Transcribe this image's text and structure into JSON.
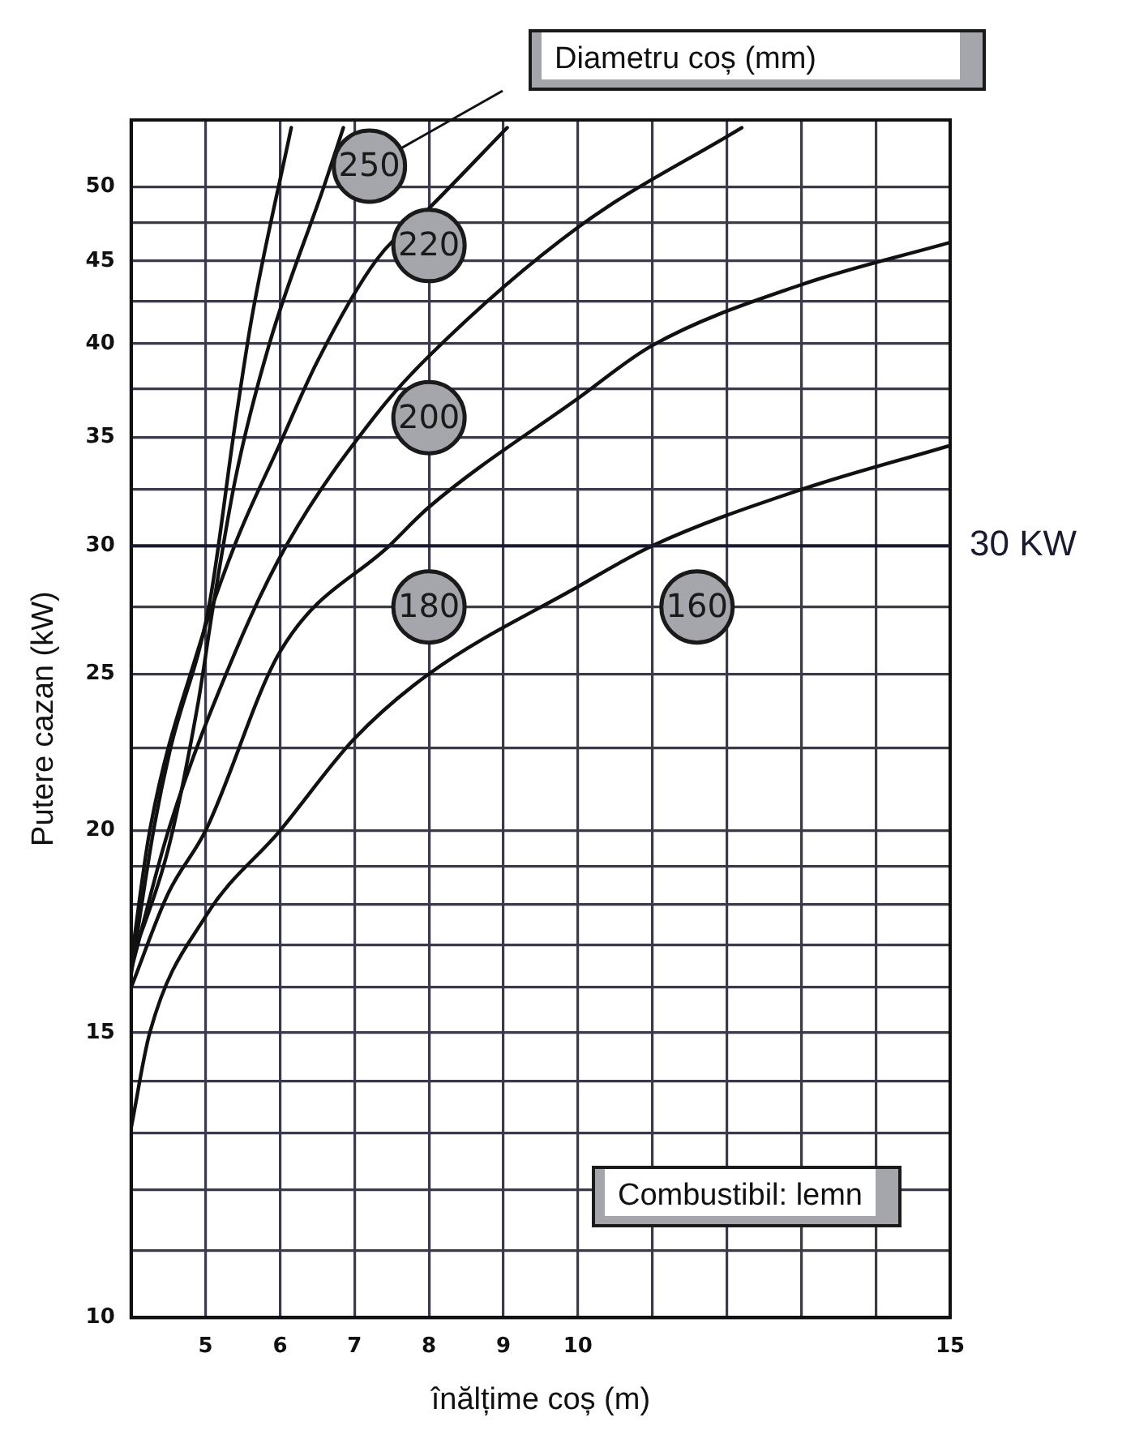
{
  "chart_data": {
    "type": "line",
    "legend_title": "Diametru coș (mm)",
    "xlabel": "înălțime coș (m)",
    "ylabel": "Putere cazan (kW)",
    "annotations": [
      "Combustibil: lemn"
    ],
    "xlim": [
      4,
      15
    ],
    "xticks": [
      {
        "value": 4,
        "label": null
      },
      5,
      6,
      7,
      8,
      9,
      10,
      {
        "value": 11,
        "label": null
      },
      {
        "value": 12,
        "label": null
      },
      {
        "value": 13,
        "label": null
      },
      {
        "value": 14,
        "label": null
      },
      15
    ],
    "ylim": [
      10,
      55
    ],
    "yticks": [
      10,
      {
        "value": 11,
        "label": null
      },
      {
        "value": 12,
        "label": null
      },
      {
        "value": 13,
        "label": null
      },
      {
        "value": 14,
        "label": null
      },
      15,
      {
        "value": 16,
        "label": null
      },
      {
        "value": 17,
        "label": null
      },
      {
        "value": 18,
        "label": null
      },
      {
        "value": 19,
        "label": null
      },
      20,
      {
        "value": 22.5,
        "label": null
      },
      25,
      {
        "value": 27.5,
        "label": null
      },
      30,
      {
        "value": 32.5,
        "label": null
      },
      35,
      {
        "value": 37.5,
        "label": null
      },
      40,
      {
        "value": 42.5,
        "label": null
      },
      45,
      {
        "value": 47.5,
        "label": null
      },
      50
    ],
    "log": "y",
    "grid": true,
    "marker": "none",
    "line_style": "solid",
    "ref_lines": [
      {
        "axis": "y",
        "value": 30,
        "label": "30 KW",
        "color": "#1a1a2e"
      }
    ],
    "series": [
      {
        "color": "#111111",
        "x": [
          4,
          4.3,
          4.52,
          5.05,
          5.39,
          5.62,
          6.15
        ],
        "values": [
          16.3,
          20,
          22.4,
          27.6,
          35.5,
          41.5,
          54.4
        ]
      },
      {
        "name": "250",
        "color": "#111111",
        "x": [
          4,
          4.5,
          4.9,
          5.1,
          5.4,
          5.85,
          6.6,
          6.85
        ],
        "values": [
          16.6,
          19.5,
          24,
          27.5,
          33,
          39.9,
          50.2,
          54.4
        ]
      },
      {
        "name": "220",
        "color": "#111111",
        "x": [
          4,
          4.25,
          4.89,
          5.4,
          6,
          6.5,
          7.3,
          8,
          9.05
        ],
        "values": [
          16.6,
          20,
          25.8,
          30.1,
          34.7,
          39,
          45.1,
          48.5,
          54.4
        ]
      },
      {
        "name": "200",
        "color": "#111111",
        "x": [
          4,
          4.5,
          5.4,
          6.1,
          7.3,
          8,
          10,
          12.2
        ],
        "values": [
          16.4,
          20,
          25.8,
          30.1,
          36.2,
          39.3,
          47.2,
          54.4
        ]
      },
      {
        "name": "180",
        "color": "#111111",
        "x": [
          4,
          4.5,
          5,
          6,
          7.5,
          8,
          10,
          11,
          13,
          15
        ],
        "values": [
          16,
          18.3,
          20,
          25.8,
          30.1,
          31.7,
          37,
          39.9,
          43.5,
          46.2
        ]
      },
      {
        "name": "160",
        "color": "#111111",
        "x": [
          4,
          4.25,
          5,
          6,
          7,
          8,
          10,
          11,
          13,
          15
        ],
        "values": [
          13.1,
          15,
          17.7,
          20,
          22.8,
          25,
          28.3,
          30,
          32.5,
          34.6
        ]
      }
    ]
  }
}
